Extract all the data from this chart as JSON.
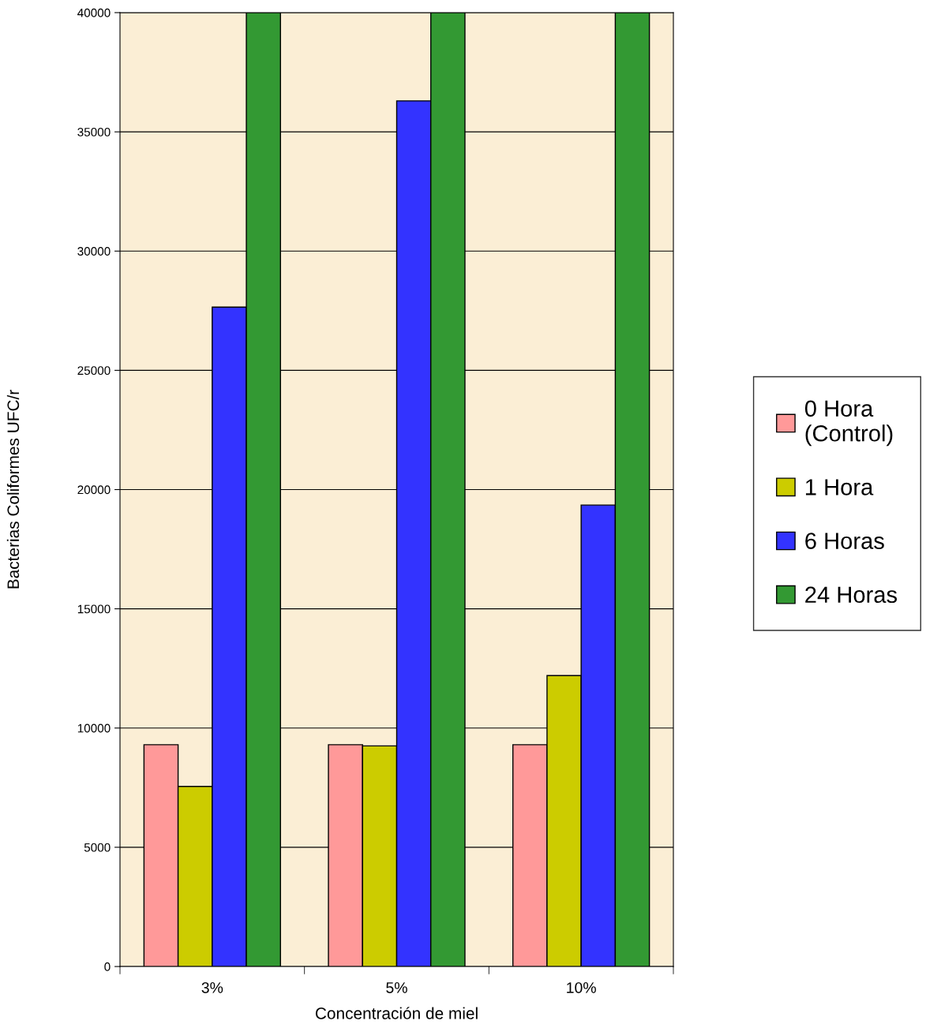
{
  "chart_data": {
    "type": "bar",
    "xlabel": "Concentración de miel",
    "ylabel": "Bacterias Coliformes UFC/r",
    "categories": [
      "3%",
      "5%",
      "10%"
    ],
    "series": [
      {
        "name": "0 Hora\n(Control)",
        "color": "#ff9999",
        "values": [
          9300,
          9300,
          9300
        ]
      },
      {
        "name": "1 Hora",
        "color": "#cccc00",
        "values": [
          7550,
          9250,
          12200
        ]
      },
      {
        "name": "6 Horas",
        "color": "#3333ff",
        "values": [
          27650,
          36300,
          19350
        ]
      },
      {
        "name": "24 Horas",
        "color": "#339933",
        "values": [
          40000,
          40000,
          40000
        ]
      }
    ],
    "ylim": [
      0,
      40000
    ],
    "yticks": [
      0,
      5000,
      10000,
      15000,
      20000,
      25000,
      30000,
      35000,
      40000
    ],
    "grid": "y",
    "legend": "right"
  }
}
